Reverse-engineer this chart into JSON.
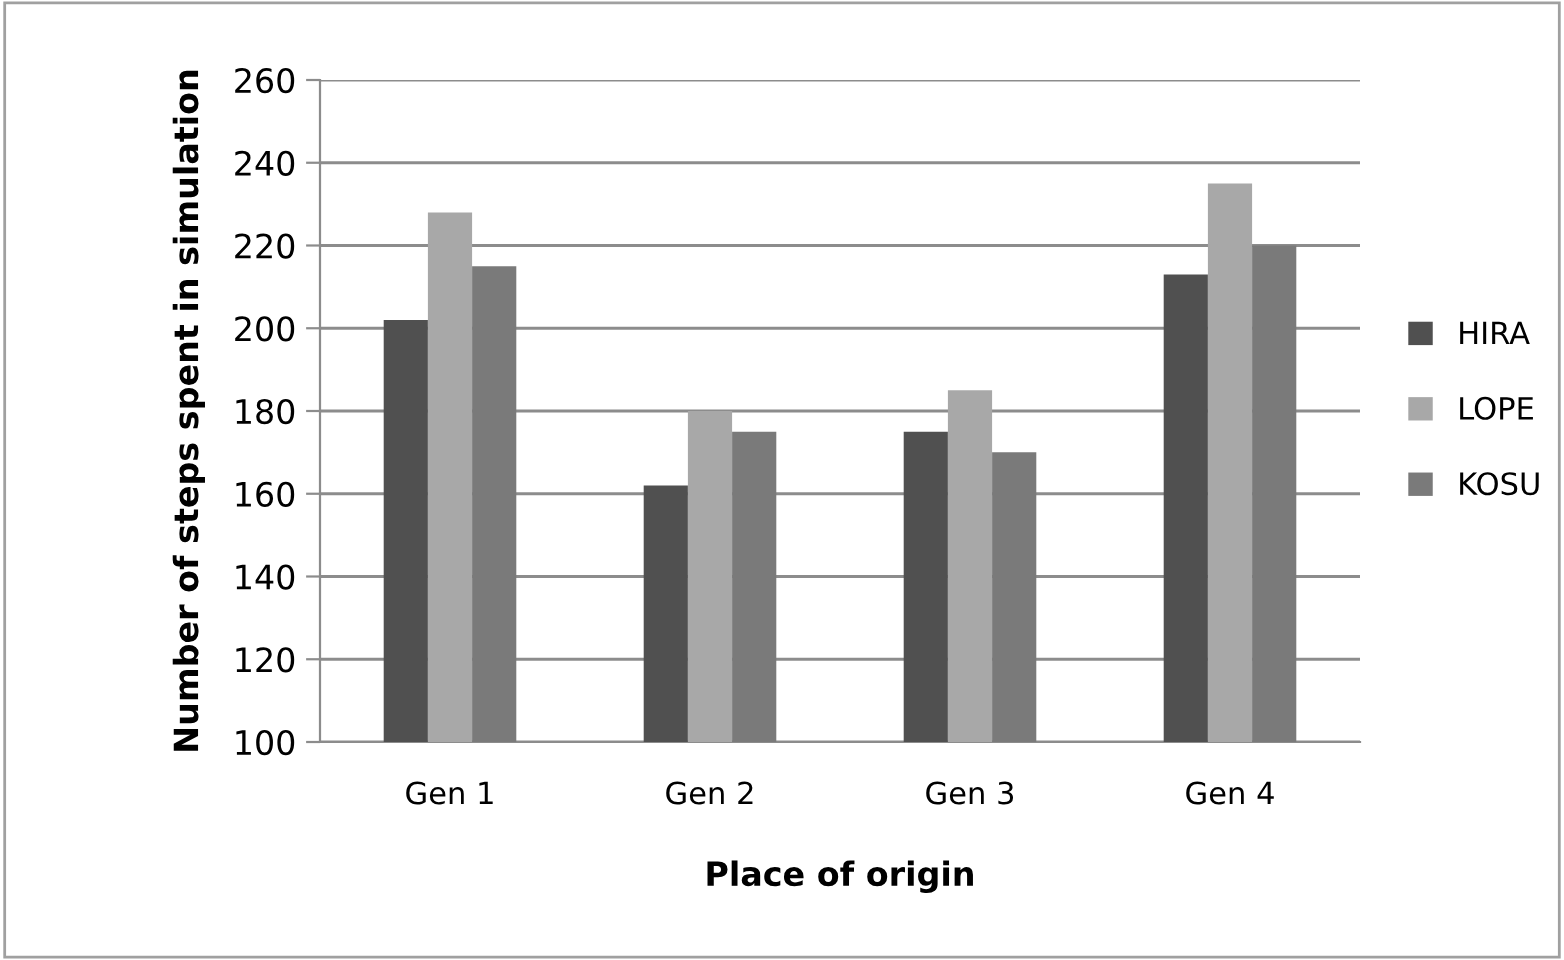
{
  "chart_data": {
    "type": "bar",
    "xlabel": "Place of origin",
    "ylabel": "Number of steps spent in simulation",
    "categories": [
      "Gen 1",
      "Gen 2",
      "Gen 3",
      "Gen 4"
    ],
    "series": [
      {
        "name": "HIRA",
        "color": "#505050",
        "values": [
          202,
          162,
          175,
          213
        ]
      },
      {
        "name": "LOPE",
        "color": "#a8a8a8",
        "values": [
          228,
          180,
          185,
          235
        ]
      },
      {
        "name": "KOSU",
        "color": "#7a7a7a",
        "values": [
          215,
          175,
          170,
          220
        ]
      }
    ],
    "ylim": [
      100,
      260
    ],
    "yticks": [
      100,
      120,
      140,
      160,
      180,
      200,
      220,
      240,
      260
    ],
    "grid": "y",
    "legend": "right"
  }
}
